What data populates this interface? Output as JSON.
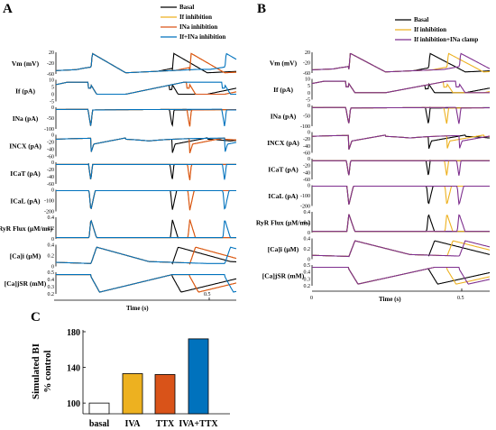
{
  "colors": {
    "basal": "#000000",
    "if": "#EDB120",
    "ina": "#D95319",
    "ifina": "#0072BD",
    "clamp": "#7E2F8E"
  },
  "panels": {
    "A": {
      "label": "A",
      "legend": [
        {
          "key": "basal",
          "label": "Basal"
        },
        {
          "key": "if",
          "label": "If inhibition"
        },
        {
          "key": "ina",
          "label": "INa inhibition"
        },
        {
          "key": "ifina",
          "label": "If+INa inhibition"
        }
      ],
      "xlabel": "Time (s)",
      "xtick": "0.5",
      "xtick0": ""
    },
    "B": {
      "label": "B",
      "legend": [
        {
          "key": "basal",
          "label": "Basal"
        },
        {
          "key": "if",
          "label": "If inhibition"
        },
        {
          "key": "clamp",
          "label": "If inhibition+INa clamp"
        }
      ],
      "xlabel": "Time (s)",
      "xtick": "0.5",
      "xtick0": "0"
    }
  },
  "rows": [
    {
      "key": "vm",
      "label": "Vm (mV)",
      "ticks": [
        "20",
        "-20",
        "-60"
      ],
      "ylim": [
        -65,
        30
      ]
    },
    {
      "key": "if",
      "label": "If (pA)",
      "ticks": [
        "10",
        "5",
        "0",
        "-5"
      ],
      "ylim": [
        -6,
        12
      ]
    },
    {
      "key": "ina",
      "label": "INa (pA)",
      "ticks": [
        "0",
        "-50",
        "-100"
      ],
      "ylim": [
        -110,
        10
      ]
    },
    {
      "key": "incx",
      "label": "INCX (pA)",
      "ticks": [
        "0",
        "-20",
        "-40",
        "-60"
      ],
      "ylim": [
        -65,
        5
      ]
    },
    {
      "key": "icat",
      "label": "ICaT (pA)",
      "ticks": [
        "0",
        "-20",
        "-40",
        "-60"
      ],
      "ylim": [
        -65,
        5
      ]
    },
    {
      "key": "ical",
      "label": "ICaL (pA)",
      "ticks": [
        "0",
        "-100",
        "-200"
      ],
      "ylim": [
        -230,
        10
      ]
    },
    {
      "key": "ryr",
      "label": "RyR Flux (μM/ms)",
      "ticks": [
        "0.4",
        "0.2",
        "0"
      ],
      "ylim": [
        -0.02,
        0.5
      ]
    },
    {
      "key": "cai",
      "label": "[Ca]i (μM)",
      "ticks": [
        "0.4",
        "0.2",
        "0"
      ],
      "ylim": [
        0,
        0.45
      ]
    },
    {
      "key": "cajsr",
      "label": "[Ca]jSR (mM)",
      "ticks": [
        "0.5",
        "0.4",
        "0.3",
        "0.2"
      ],
      "ylim": [
        0.15,
        0.52
      ]
    }
  ],
  "chart_data": [
    {
      "panel": "A",
      "type": "line",
      "x_range": [
        0,
        0.62
      ],
      "series": [
        {
          "key": "basal",
          "name": "Basal",
          "upstrokes": [
            0.12,
            0.4
          ]
        },
        {
          "key": "if",
          "name": "If inhibition",
          "upstrokes": [
            0.12,
            0.46
          ]
        },
        {
          "key": "ina",
          "name": "INa inhibition",
          "upstrokes": [
            0.12,
            0.46
          ]
        },
        {
          "key": "ifina",
          "name": "If+INa inhibition",
          "upstrokes": [
            0.12,
            0.58
          ]
        }
      ]
    },
    {
      "panel": "B",
      "type": "line",
      "x_range": [
        0,
        0.58
      ],
      "series": [
        {
          "key": "basal",
          "name": "Basal",
          "upstrokes": [
            0.12,
            0.38
          ]
        },
        {
          "key": "if",
          "name": "If inhibition",
          "upstrokes": [
            0.12,
            0.44
          ]
        },
        {
          "key": "clamp",
          "name": "If inhibition+INa clamp",
          "upstrokes": [
            0.12,
            0.48
          ]
        }
      ]
    },
    {
      "panel": "C",
      "type": "bar",
      "label": "C",
      "ylabel_line1": "Simulated BI",
      "ylabel_line2": "% control",
      "categories": [
        "basal",
        "IVA",
        "TTX",
        "IVA+TTX"
      ],
      "values": [
        100,
        133,
        132,
        172
      ],
      "colors": [
        "#FFFFFF",
        "#EDB120",
        "#D95319",
        "#0072BD"
      ],
      "yticks": [
        "100",
        "140",
        "180"
      ],
      "ylim": [
        88,
        182
      ]
    }
  ]
}
